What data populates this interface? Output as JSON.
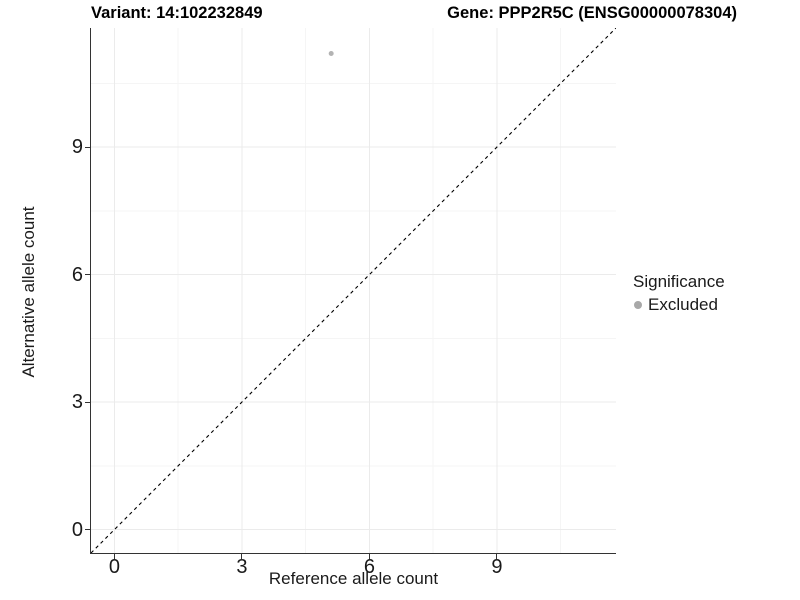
{
  "chart_data": {
    "type": "scatter",
    "title_left": "Variant: 14:102232849",
    "title_right": "Gene: PPP2R5C (ENSG00000078304)",
    "xlabel": "Reference allele count",
    "ylabel": "Alternative allele count",
    "x_ticks": [
      0,
      3,
      6,
      9
    ],
    "y_ticks": [
      0,
      3,
      6,
      9
    ],
    "x_minor_ticks": [
      1.5,
      4.5,
      7.5,
      10.5
    ],
    "y_minor_ticks": [
      1.5,
      4.5,
      7.5,
      10.5
    ],
    "xlim": [
      -0.55,
      11.8
    ],
    "ylim": [
      -0.55,
      11.8
    ],
    "grid": true,
    "reference_line": {
      "style": "dashed",
      "slope": 1,
      "intercept": 0,
      "color": "#000000"
    },
    "series": [
      {
        "name": "Excluded",
        "color": "#b3b3b3",
        "points": [
          {
            "x": 5.1,
            "y": 11.2
          }
        ]
      }
    ],
    "legend": {
      "title": "Significance",
      "position": "right",
      "entries": [
        {
          "label": "Excluded",
          "color": "#a8a8a8"
        }
      ]
    },
    "colors": {
      "grid_major": "#ebebeb",
      "grid_minor": "#f5f5f5",
      "axis_line": "#333333",
      "background": "#ffffff"
    }
  }
}
